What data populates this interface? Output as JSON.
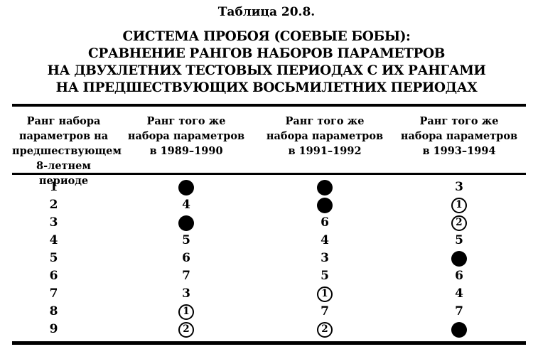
{
  "document": {
    "caption": "Таблица 20.8.",
    "title_lines": [
      "СИСТЕМА ПРОБОЯ (СОЕВЫЕ БОБЫ):",
      "СРАВНЕНИЕ РАНГОВ НАБОРОВ ПАРАМЕТРОВ",
      "НА ДВУХЛЕТНИХ ТЕСТОВЫХ ПЕРИОДАХ С ИХ РАНГАМИ",
      "НА ПРЕДШЕСТВУЮЩИХ ВОСЬМИЛЕТНИХ ПЕРИОДАХ"
    ]
  },
  "table": {
    "ink_color": "#000000",
    "paper_color": "#ffffff",
    "columns": [
      {
        "header_lines": [
          "Ранг набора",
          "параметров на",
          "предшествующем",
          "8-летнем периоде"
        ]
      },
      {
        "header_lines": [
          "Ранг того же",
          "набора параметров",
          "в 1989–1990"
        ]
      },
      {
        "header_lines": [
          "Ранг того же",
          "набора параметров",
          "в 1991–1992"
        ]
      },
      {
        "header_lines": [
          "Ранг того же",
          "набора параметров",
          "в 1993–1994"
        ]
      }
    ],
    "markers": {
      "dot": "filled-black-circle",
      "circle": "circled-number"
    },
    "rows": [
      [
        "1",
        "dot",
        "dot",
        "3"
      ],
      [
        "2",
        "4",
        "dot",
        "circle:1"
      ],
      [
        "3",
        "dot",
        "6",
        "circle:2"
      ],
      [
        "4",
        "5",
        "4",
        "5"
      ],
      [
        "5",
        "6",
        "3",
        "dot"
      ],
      [
        "6",
        "7",
        "5",
        "6"
      ],
      [
        "7",
        "3",
        "circle:1",
        "4"
      ],
      [
        "8",
        "circle:1",
        "7",
        "7"
      ],
      [
        "9",
        "circle:2",
        "circle:2",
        "dot"
      ]
    ]
  }
}
